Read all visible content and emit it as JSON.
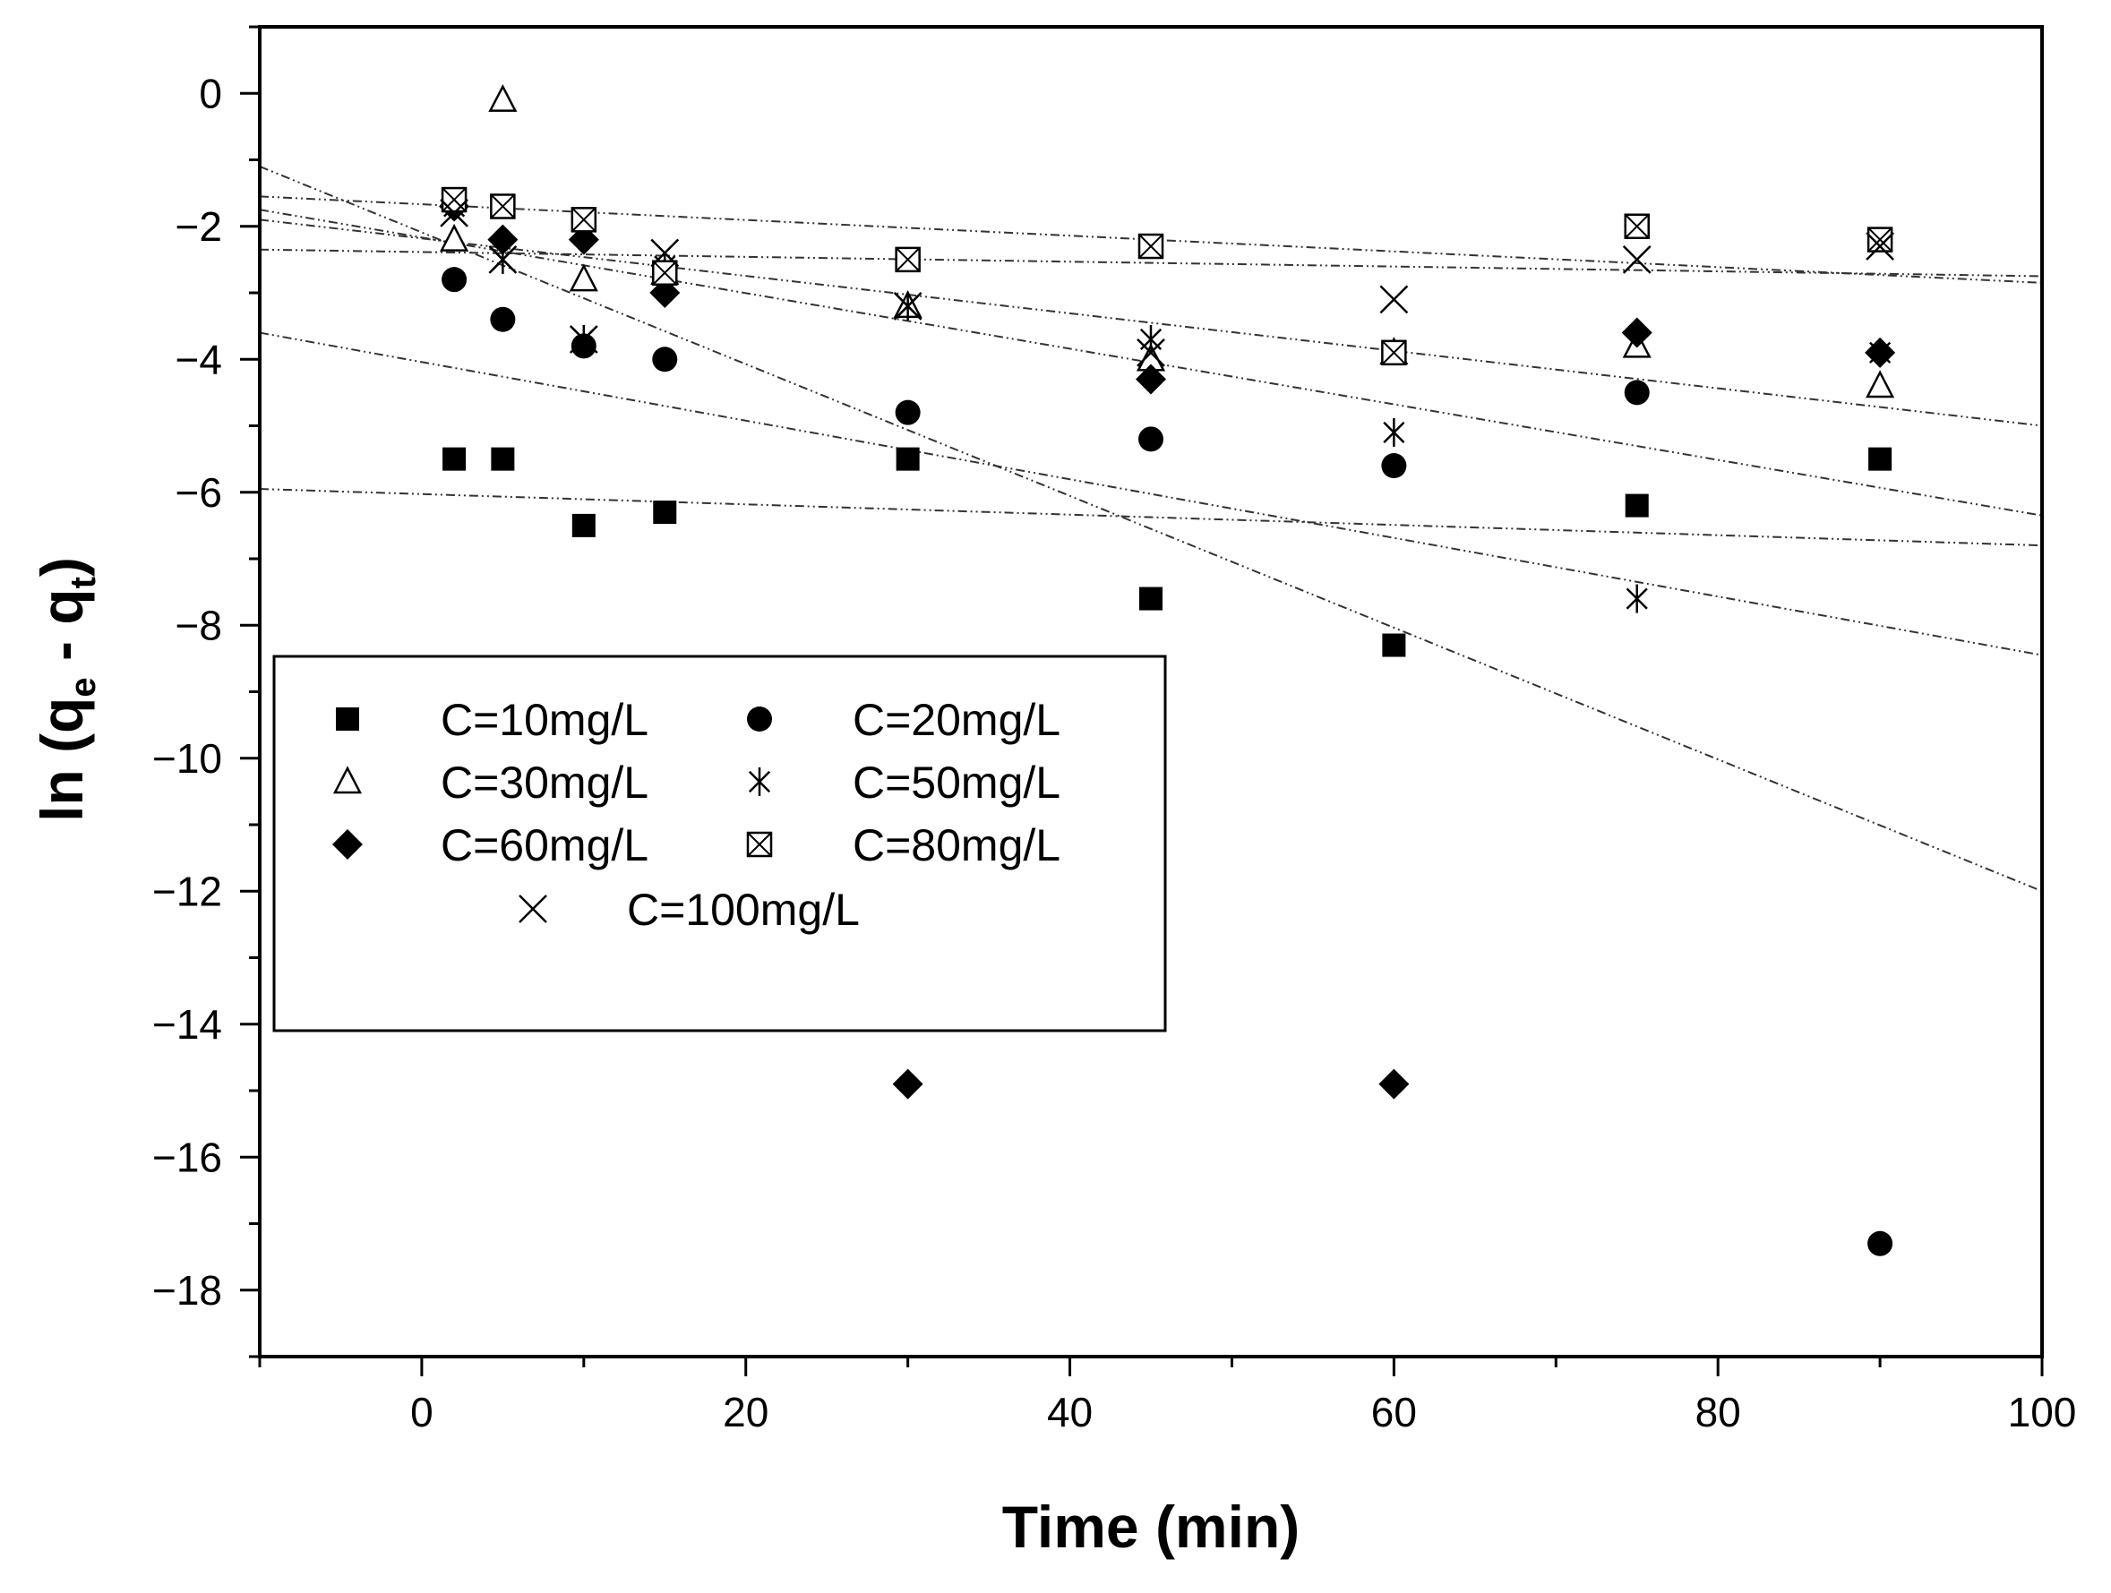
{
  "chart_data": {
    "type": "scatter",
    "title": "",
    "xlabel": "Time (min)",
    "ylabel": "ln (qe - qt)",
    "ylabel_parts": {
      "prefix": "ln (q",
      "sub1": "e",
      "mid": " - q",
      "sub2": "t",
      "suffix": ")"
    },
    "xlim": [
      -10,
      100
    ],
    "ylim": [
      -19,
      1
    ],
    "x_ticks": [
      0,
      20,
      40,
      60,
      80,
      100
    ],
    "x_tick_labels": [
      "0",
      "20",
      "40",
      "60",
      "80",
      "100"
    ],
    "y_ticks": [
      0,
      -2,
      -4,
      -6,
      -8,
      -10,
      -12,
      -14,
      -16,
      -18
    ],
    "y_tick_labels": [
      "0",
      "−2",
      "−4",
      "−6",
      "−8",
      "−10",
      "−12",
      "−14",
      "−16",
      "−18"
    ],
    "grid": false,
    "legend_position": "middle-left",
    "series": [
      {
        "name": "C=10mg/L",
        "marker": "filled-square",
        "x": [
          2,
          5,
          10,
          15,
          30,
          45,
          60,
          75,
          90
        ],
        "y": [
          -5.5,
          -5.5,
          -6.5,
          -6.3,
          -5.5,
          -7.6,
          -8.3,
          -6.2,
          -5.5
        ],
        "fit": {
          "x": [
            -10,
            100
          ],
          "y": [
            -5.95,
            -6.8
          ]
        }
      },
      {
        "name": "C=20mg/L",
        "marker": "filled-circle",
        "x": [
          2,
          5,
          10,
          15,
          30,
          45,
          60,
          75,
          90
        ],
        "y": [
          -2.8,
          -3.4,
          -3.8,
          -4.0,
          -4.8,
          -5.2,
          -5.6,
          -4.5,
          -17.3
        ],
        "fit": {
          "x": [
            -10,
            100
          ],
          "y": [
            -1.1,
            -12.0
          ]
        }
      },
      {
        "name": "C=30mg/L",
        "marker": "open-triangle",
        "x": [
          2,
          5,
          10,
          15,
          30,
          45,
          60,
          75,
          90
        ],
        "y": [
          -2.2,
          -0.1,
          -2.8,
          -2.7,
          -3.2,
          -4.0,
          -3.9,
          -3.8,
          -4.4
        ],
        "fit": {
          "x": [
            -10,
            100
          ],
          "y": [
            -1.9,
            -5.0
          ]
        }
      },
      {
        "name": "C=50mg/L",
        "marker": "asterisk",
        "x": [
          2,
          5,
          10,
          15,
          30,
          45,
          60,
          75,
          90
        ],
        "y": [
          -1.7,
          -2.5,
          -3.7,
          -2.6,
          -3.2,
          -3.7,
          -5.1,
          -7.6,
          -3.9
        ],
        "fit": {
          "x": [
            -10,
            100
          ],
          "y": [
            -3.6,
            -8.45
          ]
        }
      },
      {
        "name": "C=60mg/L",
        "marker": "filled-diamond",
        "x": [
          2,
          5,
          10,
          15,
          30,
          45,
          60,
          75,
          90
        ],
        "y": [
          -1.7,
          -2.2,
          -2.2,
          -3.0,
          -14.9,
          -4.3,
          -14.9,
          -3.6,
          -3.9
        ],
        "fit": {
          "x": [
            -10,
            100
          ],
          "y": [
            -1.75,
            -6.35
          ]
        }
      },
      {
        "name": "C=80mg/L",
        "marker": "boxed-x",
        "x": [
          2,
          5,
          10,
          15,
          30,
          45,
          60,
          75,
          90
        ],
        "y": [
          -1.6,
          -1.7,
          -1.9,
          -2.7,
          -2.5,
          -2.3,
          -3.9,
          -2.0,
          -2.2
        ],
        "fit": {
          "x": [
            -10,
            100
          ],
          "y": [
            -1.55,
            -2.85
          ]
        }
      },
      {
        "name": "C=100mg/L",
        "marker": "x-cross",
        "x": [
          2,
          5,
          10,
          15,
          30,
          45,
          60,
          75,
          90
        ],
        "y": [
          -1.8,
          -2.5,
          -3.7,
          -2.4,
          -3.2,
          -3.9,
          -3.1,
          -2.5,
          -2.3
        ],
        "fit": {
          "x": [
            -10,
            100
          ],
          "y": [
            -2.35,
            -2.75
          ]
        }
      }
    ]
  }
}
